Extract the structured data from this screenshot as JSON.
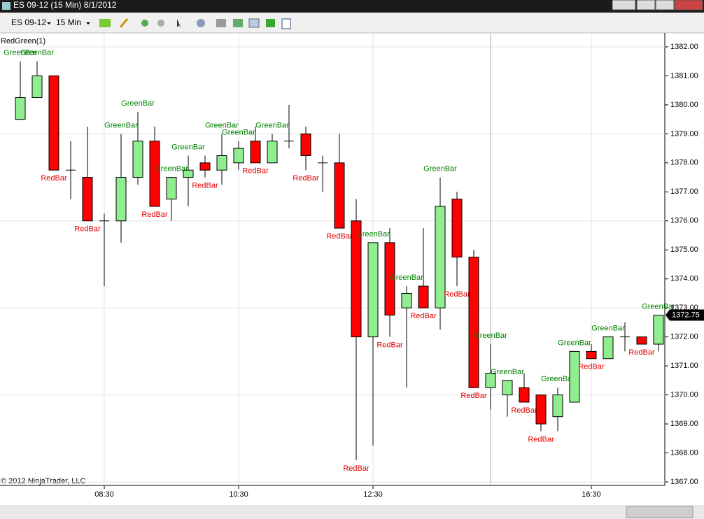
{
  "window": {
    "title": "ES 09-12 (15 Min)  8/1/2012"
  },
  "toolbar": {
    "instrument": "ES 09-12",
    "interval": "15 Min"
  },
  "chart_data": {
    "type": "candlestick",
    "indicator": "RedGreen(1)",
    "copyright": "© 2012 NinjaTrader, LLC",
    "categories": [
      null,
      null,
      null,
      null,
      null,
      "08:30",
      null,
      null,
      null,
      null,
      null,
      null,
      null,
      "10:30",
      null,
      null,
      null,
      null,
      null,
      null,
      null,
      "12:30",
      null,
      null,
      null,
      null,
      null,
      null,
      null,
      null,
      null,
      null,
      null,
      null,
      "16:30",
      null,
      null,
      null,
      null
    ],
    "open": [
      1379.5,
      1380.25,
      1381,
      1377.75,
      1377.5,
      1376,
      1376,
      1377.5,
      1378.75,
      1376.75,
      1377.5,
      1378,
      1377.75,
      1378,
      1378.75,
      1378,
      1378.75,
      1379,
      1378,
      1378,
      1376,
      1372,
      1375.25,
      1373,
      1373.75,
      1373,
      1376.75,
      1374.75,
      1370.25,
      1370,
      1370.25,
      1370,
      1369.25,
      1369.75,
      1371.5,
      1371.25,
      1372,
      1372,
      1371.75
    ],
    "high": [
      1381.5,
      1381.5,
      1381,
      1378.75,
      1379.25,
      1376.25,
      1379,
      1379.75,
      1379.25,
      1377.5,
      1378.25,
      1378.25,
      1379,
      1378.75,
      1379.25,
      1379,
      1380,
      1379.25,
      1378.25,
      1379,
      1376.75,
      1375.25,
      1375.75,
      1373.75,
      1375.75,
      1377.5,
      1377,
      1375,
      1371.75,
      1370.5,
      1370.75,
      1370,
      1370.25,
      1371.5,
      1371.75,
      1372,
      1372.5,
      1372,
      1372.75
    ],
    "low": [
      1379.5,
      1380.25,
      1377.75,
      1376.75,
      1376,
      1373.75,
      1375.25,
      1377.25,
      1376.5,
      1376,
      1376.5,
      1377.5,
      1377.25,
      1377.75,
      1378,
      1378,
      1378.5,
      1377.75,
      1377,
      1375.75,
      1367.75,
      1368.25,
      1372,
      1370.25,
      1373,
      1372.25,
      1373.75,
      1370.25,
      1369.5,
      1369.25,
      1369.75,
      1368.75,
      1368.75,
      1369.75,
      1371.25,
      1371.25,
      1371.5,
      1371.75,
      1371.5
    ],
    "close": [
      1380.25,
      1381,
      1377.75,
      1377.75,
      1376,
      1376,
      1377.5,
      1378.75,
      1376.5,
      1377.5,
      1377.75,
      1377.75,
      1378.25,
      1378.5,
      1378,
      1378.75,
      1378.75,
      1378.25,
      1378,
      1375.75,
      1372,
      1375.25,
      1372.75,
      1373.5,
      1373,
      1376.5,
      1374.75,
      1370.25,
      1370.75,
      1370.5,
      1369.75,
      1369,
      1370,
      1371.5,
      1371.25,
      1372,
      1372,
      1371.75,
      1372.75
    ],
    "labels": [
      "GreenBar",
      "GreenBar",
      "RedBar",
      null,
      "RedBar",
      null,
      "GreenBar",
      "GreenBar",
      "RedBar",
      "GreenBar",
      "GreenBar",
      "RedBar",
      "GreenBar",
      "GreenBar",
      "RedBar",
      "GreenBar",
      null,
      "RedBar",
      null,
      "RedBar",
      "RedBar",
      "GreenBar",
      "RedBar",
      "GreenBar",
      "RedBar",
      "GreenBar",
      "RedBar",
      "RedBar",
      "GreenBar",
      "GreenBar",
      "RedBar",
      "RedBar",
      "GreenBar",
      "GreenBar",
      "RedBar",
      "GreenBar",
      null,
      "RedBar",
      "GreenBar"
    ],
    "up_color": "#90ee90",
    "down_color": "#ff0000",
    "last_price": 1372.75,
    "ylim": [
      1366.75,
      1382.2
    ],
    "yticks": [
      {
        "value": 1367,
        "label": "1367.00"
      },
      {
        "value": 1368,
        "label": "1368.00"
      },
      {
        "value": 1369,
        "label": "1369.00"
      },
      {
        "value": 1370,
        "label": "1370.00"
      },
      {
        "value": 1371,
        "label": "1371.00"
      },
      {
        "value": 1372,
        "label": "1372.00"
      },
      {
        "value": 1373,
        "label": "1373.00"
      },
      {
        "value": 1374,
        "label": "1374.00"
      },
      {
        "value": 1375,
        "label": "1375.00"
      },
      {
        "value": 1376,
        "label": "1376.00"
      },
      {
        "value": 1377,
        "label": "1377.00"
      },
      {
        "value": 1378,
        "label": "1378.00"
      },
      {
        "value": 1379,
        "label": "1379.00"
      },
      {
        "value": 1380,
        "label": "1380.00"
      },
      {
        "value": 1381,
        "label": "1381.00"
      },
      {
        "value": 1382,
        "label": "1382.00"
      }
    ],
    "grid": true
  }
}
